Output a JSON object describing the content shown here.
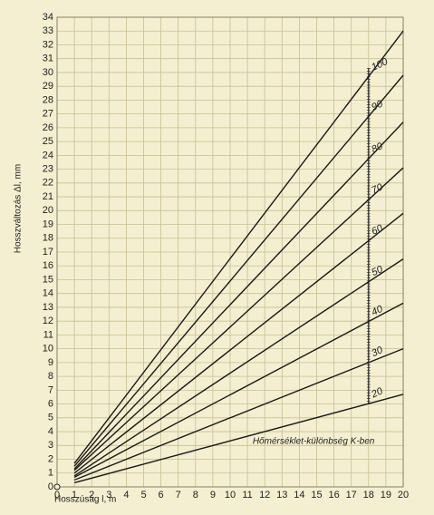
{
  "chart_data": {
    "type": "line",
    "y_label": "Hosszváltozás Δl, mm",
    "x_label": "Hosszúság l, m",
    "annotation": "Hőmérséklet-különbség K-ben",
    "x": [
      1,
      20
    ],
    "xlim": [
      0,
      20
    ],
    "ylim": [
      0,
      34
    ],
    "xticks": [
      0,
      1,
      2,
      3,
      4,
      5,
      6,
      7,
      8,
      9,
      10,
      11,
      12,
      13,
      14,
      15,
      16,
      17,
      18,
      19,
      20
    ],
    "yticks": [
      0,
      1,
      2,
      3,
      4,
      5,
      6,
      7,
      8,
      9,
      10,
      11,
      12,
      13,
      14,
      15,
      16,
      17,
      18,
      19,
      20,
      21,
      22,
      23,
      24,
      25,
      26,
      27,
      28,
      29,
      30,
      31,
      32,
      33,
      34
    ],
    "grid": true,
    "series": [
      {
        "name": "20",
        "color": "#1a1a1a",
        "values": [
          0.3,
          6.7
        ]
      },
      {
        "name": "30",
        "color": "#1a1a1a",
        "values": [
          0.5,
          10
        ]
      },
      {
        "name": "40",
        "color": "#1a1a1a",
        "values": [
          0.7,
          13.3
        ]
      },
      {
        "name": "50",
        "color": "#1a1a1a",
        "values": [
          0.8,
          16.5
        ]
      },
      {
        "name": "60",
        "color": "#1a1a1a",
        "values": [
          1,
          19.8
        ]
      },
      {
        "name": "70",
        "color": "#1a1a1a",
        "values": [
          1.2,
          23.1
        ]
      },
      {
        "name": "80",
        "color": "#1a1a1a",
        "values": [
          1.3,
          26.4
        ]
      },
      {
        "name": "90",
        "color": "#1a1a1a",
        "values": [
          1.5,
          29.8
        ]
      },
      {
        "name": "100",
        "color": "#1a1a1a",
        "values": [
          1.7,
          33
        ]
      }
    ]
  }
}
